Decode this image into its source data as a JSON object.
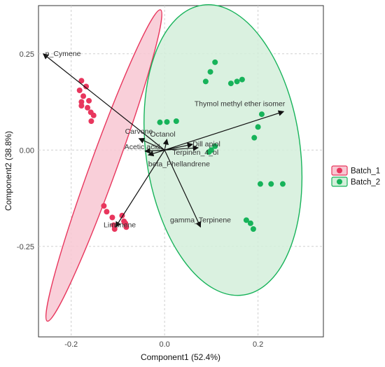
{
  "chart_data": {
    "type": "scatter",
    "subtype": "PCA biplot",
    "xlabel": "Component1 (52.4%)",
    "ylabel": "Component2 (38.8%)",
    "xlim": [
      -0.27,
      0.34
    ],
    "ylim": [
      -0.485,
      0.375
    ],
    "xticks": [
      -0.2,
      0.0,
      0.2
    ],
    "xtick_labels": [
      "-0.2",
      "0.0",
      "0.2"
    ],
    "yticks": [
      -0.25,
      0.0,
      0.25
    ],
    "ytick_labels": [
      "-0.25",
      "0.00",
      "0.25"
    ],
    "grid": true,
    "legend_position": "right",
    "series": [
      {
        "name": "Batch_1",
        "color": "#e8365d",
        "fill": "#f8c7d2",
        "points": [
          [
            -0.178,
            0.18
          ],
          [
            -0.168,
            0.165
          ],
          [
            -0.182,
            0.155
          ],
          [
            -0.174,
            0.14
          ],
          [
            -0.178,
            0.125
          ],
          [
            -0.178,
            0.115
          ],
          [
            -0.162,
            0.128
          ],
          [
            -0.165,
            0.11
          ],
          [
            -0.158,
            0.098
          ],
          [
            -0.152,
            0.09
          ],
          [
            -0.157,
            0.075
          ],
          [
            -0.13,
            -0.145
          ],
          [
            -0.124,
            -0.16
          ],
          [
            -0.112,
            -0.175
          ],
          [
            -0.109,
            -0.195
          ],
          [
            -0.107,
            -0.205
          ],
          [
            -0.091,
            -0.17
          ],
          [
            -0.087,
            -0.185
          ],
          [
            -0.084,
            -0.19
          ],
          [
            -0.082,
            -0.2
          ]
        ],
        "ellipse": {
          "center": [
            -0.13,
            -0.04
          ],
          "semi_axes": [
            0.028,
            0.43
          ],
          "angle_deg": 20
        }
      },
      {
        "name": "Batch_2",
        "color": "#17b35a",
        "fill": "#d3efda",
        "points": [
          [
            0.108,
            0.228
          ],
          [
            0.098,
            0.203
          ],
          [
            0.088,
            0.178
          ],
          [
            0.142,
            0.173
          ],
          [
            0.155,
            0.178
          ],
          [
            0.166,
            0.183
          ],
          [
            0.208,
            0.093
          ],
          [
            -0.01,
            0.072
          ],
          [
            0.005,
            0.073
          ],
          [
            0.025,
            0.075
          ],
          [
            0.2,
            0.06
          ],
          [
            0.192,
            0.032
          ],
          [
            0.108,
            0.01
          ],
          [
            0.1,
            0.0
          ],
          [
            0.095,
            -0.005
          ],
          [
            0.205,
            -0.088
          ],
          [
            0.228,
            -0.088
          ],
          [
            0.253,
            -0.088
          ],
          [
            0.175,
            -0.182
          ],
          [
            0.184,
            -0.19
          ],
          [
            0.19,
            -0.205
          ]
        ],
        "ellipse": {
          "center": [
            0.125,
            0.0
          ],
          "semi_axes": [
            0.165,
            0.38
          ],
          "angle_deg": -8
        }
      }
    ],
    "loadings": [
      {
        "label": "p_Cymene",
        "x": -0.26,
        "y": 0.25
      },
      {
        "label": "Thymol methyl ether isomer",
        "x": 0.255,
        "y": 0.1
      },
      {
        "label": "Carvone",
        "x": -0.055,
        "y": 0.03
      },
      {
        "label": "Acetic acid",
        "x": -0.042,
        "y": -0.003
      },
      {
        "label": "Octanol",
        "x": 0.005,
        "y": 0.028
      },
      {
        "label": "Dill apiol",
        "x": 0.06,
        "y": 0.015
      },
      {
        "label": "beta_Phellandrene",
        "x": -0.035,
        "y": -0.013
      },
      {
        "label": "Terpinen_4_ol",
        "x": 0.072,
        "y": 0.006
      },
      {
        "label": "gamma_Terpinene",
        "x": 0.077,
        "y": -0.2
      },
      {
        "label": "Limonene",
        "x": -0.105,
        "y": -0.2
      }
    ]
  }
}
